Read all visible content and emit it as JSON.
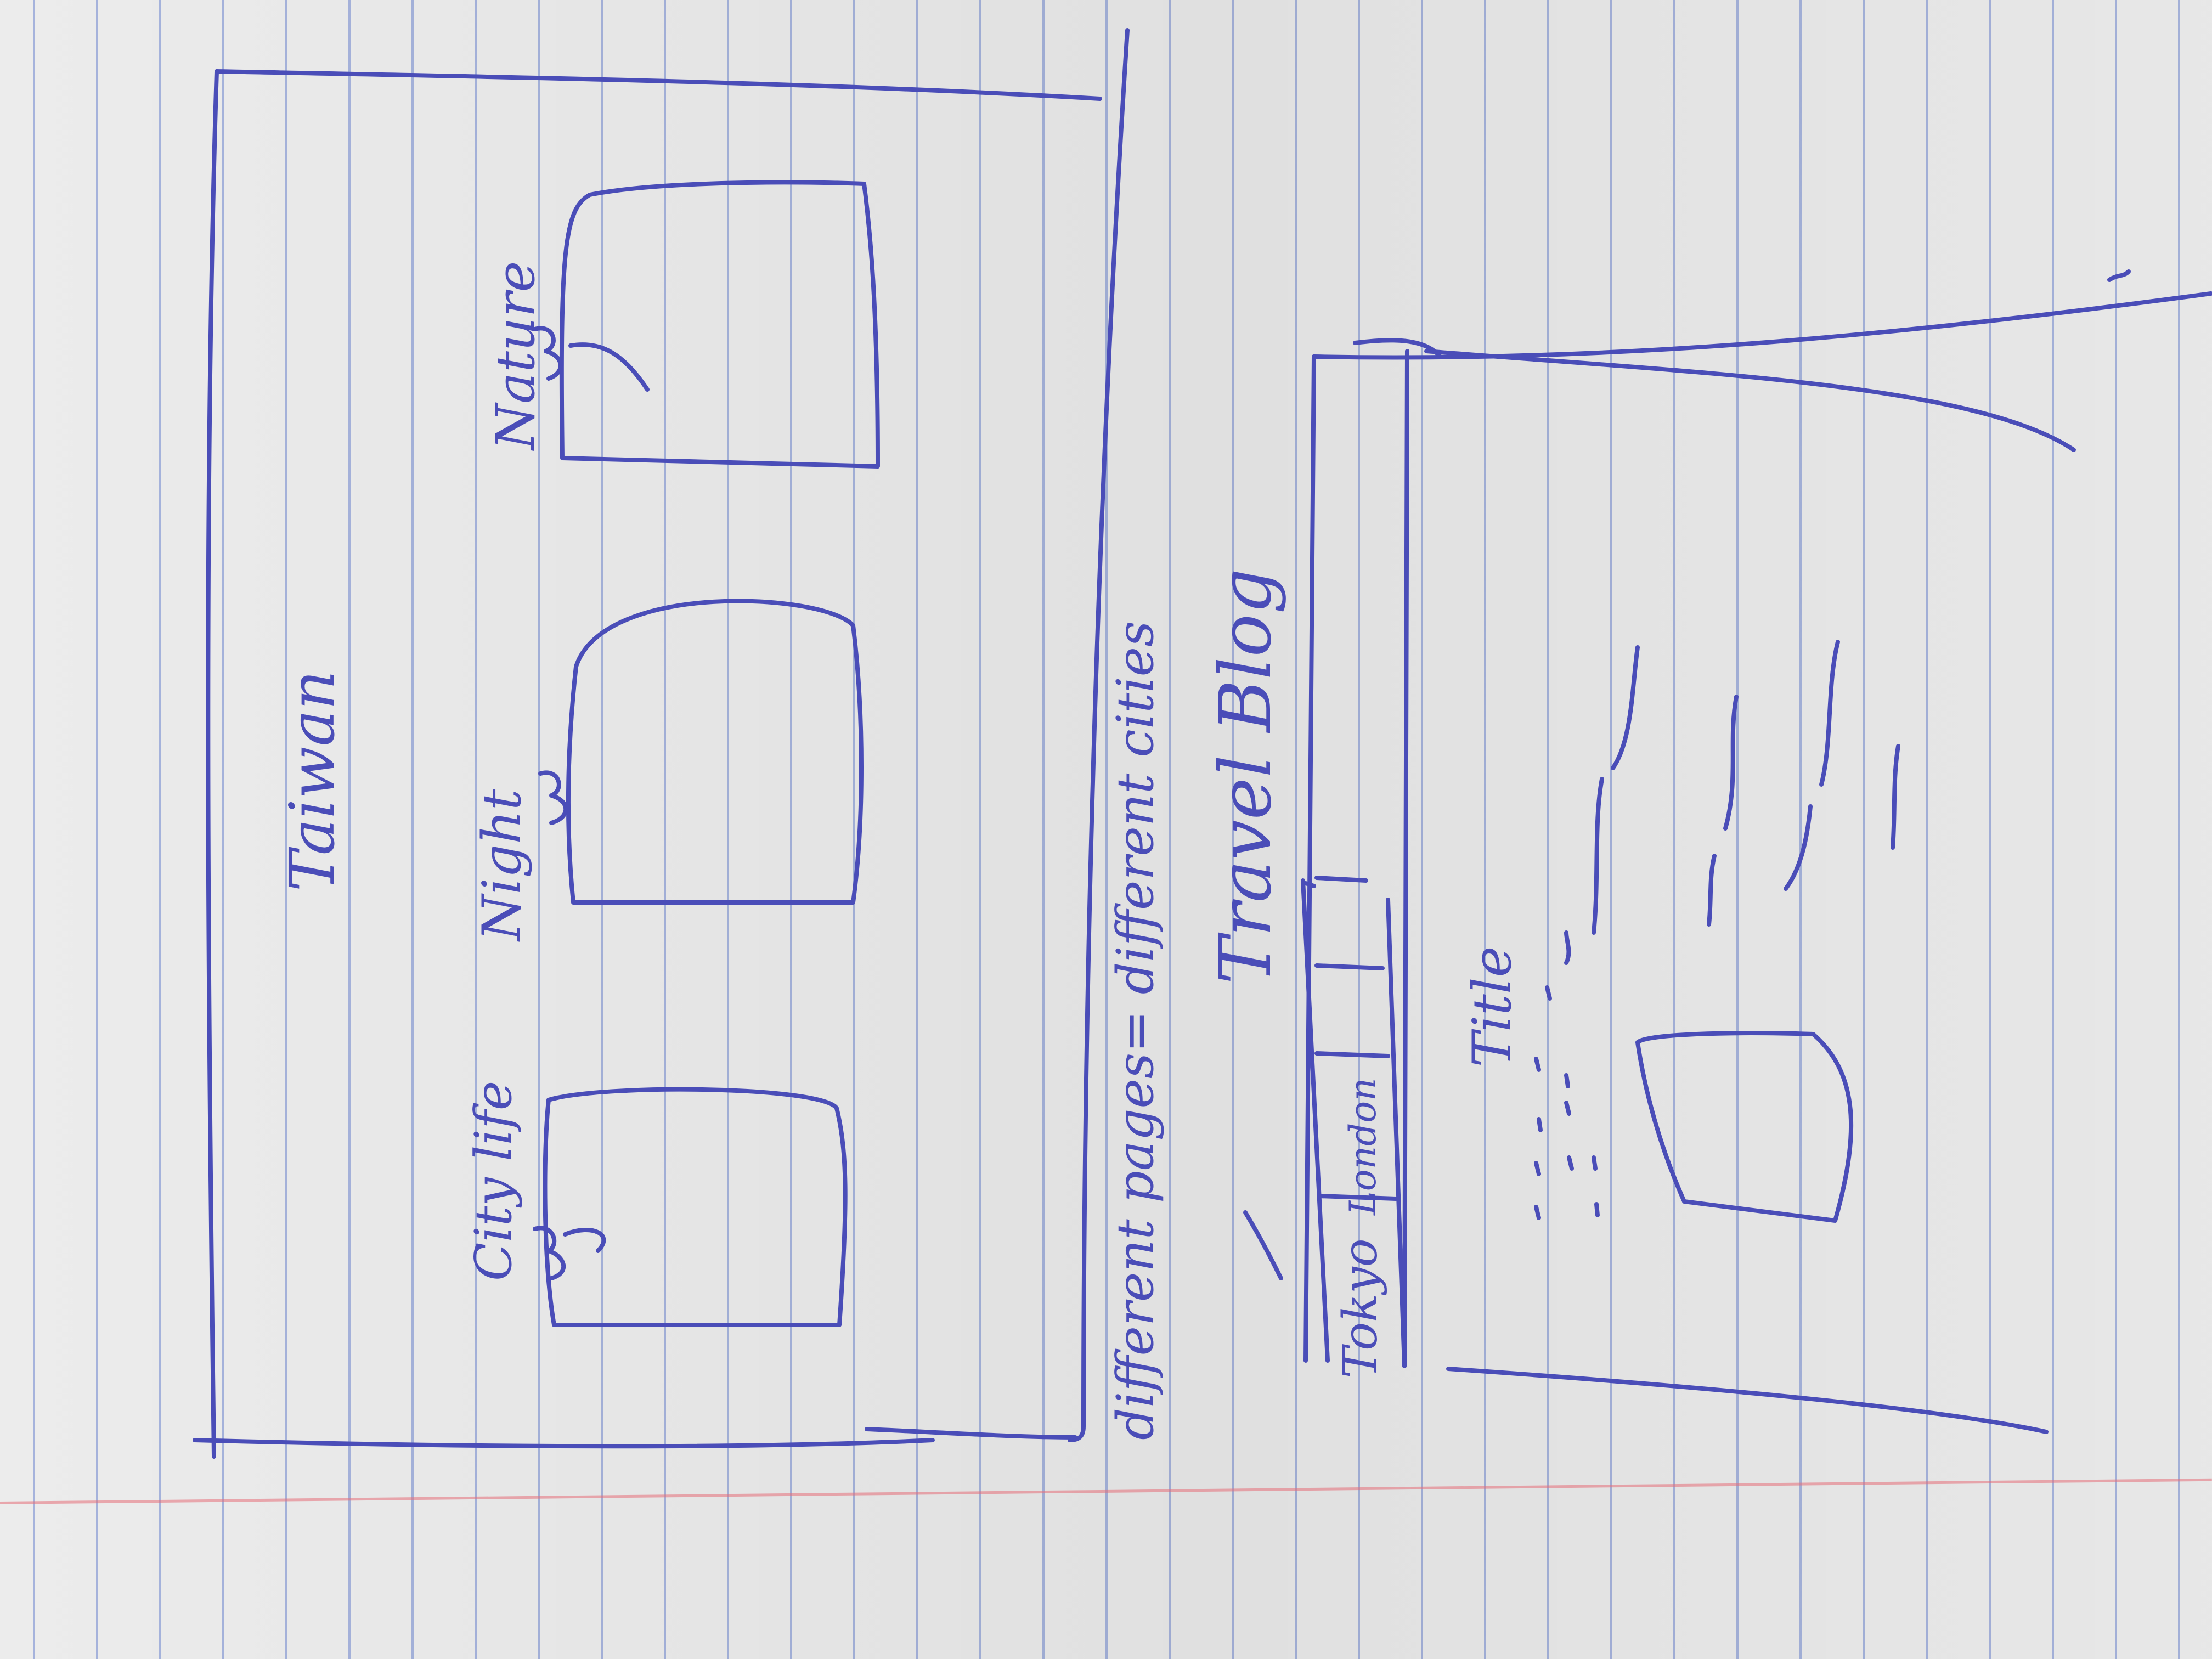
{
  "sketch": {
    "page_one": {
      "heading": "Taiwan",
      "sections": [
        {
          "label": "City life"
        },
        {
          "label": "Night"
        },
        {
          "label": "Nature"
        }
      ]
    },
    "page_two": {
      "note": "different pages= different cities",
      "heading": "Travel Blog",
      "tabs": [
        {
          "label": "Tokyo"
        },
        {
          "label": "London"
        }
      ],
      "post_title": "Title"
    },
    "ink_color": "#4a4db8",
    "paper_color": "#ececec",
    "rule_color": "#6e8cd0",
    "margin_color": "#e66e78"
  }
}
